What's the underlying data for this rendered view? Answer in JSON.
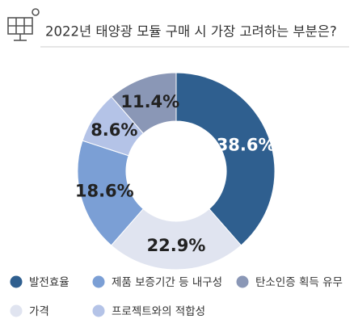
{
  "chart_data": {
    "type": "pie",
    "title": "2022년 태양광 모듈 구매 시 가장 고려하는 부분은?",
    "categories": [
      "발전효율",
      "가격",
      "제품 보증기간 등 내구성",
      "프로젝트와의 적합성",
      "탄소인증 획득 유무"
    ],
    "values": [
      38.6,
      22.9,
      18.6,
      8.6,
      11.4
    ],
    "value_labels": [
      "38.6%",
      "22.9%",
      "18.6%",
      "8.6%",
      "11.4%"
    ],
    "colors": [
      "#2f5f8f",
      "#e0e4f0",
      "#7b9fd5",
      "#b4c3e7",
      "#8a97b6"
    ],
    "label_colors": [
      "#ffffff",
      "#222222",
      "#222222",
      "#222222",
      "#222222"
    ]
  }
}
